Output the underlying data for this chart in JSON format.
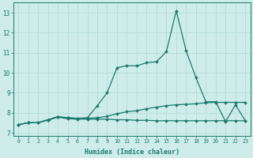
{
  "x": [
    0,
    1,
    2,
    3,
    4,
    5,
    6,
    7,
    8,
    9,
    10,
    11,
    12,
    13,
    14,
    15,
    16,
    17,
    18,
    19,
    20,
    21,
    22,
    23
  ],
  "y_peak": [
    7.4,
    7.5,
    7.5,
    7.65,
    7.8,
    7.75,
    7.72,
    7.75,
    8.35,
    9.0,
    10.25,
    10.35,
    10.35,
    10.5,
    10.55,
    11.05,
    13.1,
    11.1,
    9.75,
    8.55,
    8.55,
    7.55,
    8.4,
    7.6
  ],
  "y_mid": [
    7.4,
    7.5,
    7.5,
    7.65,
    7.8,
    7.75,
    7.72,
    7.72,
    7.75,
    7.82,
    7.95,
    8.05,
    8.1,
    8.2,
    8.28,
    8.35,
    8.4,
    8.42,
    8.45,
    8.5,
    8.52,
    8.52,
    8.52,
    8.52
  ],
  "y_flat": [
    7.4,
    7.5,
    7.5,
    7.62,
    7.78,
    7.7,
    7.68,
    7.68,
    7.68,
    7.68,
    7.65,
    7.65,
    7.62,
    7.62,
    7.6,
    7.6,
    7.6,
    7.6,
    7.6,
    7.6,
    7.6,
    7.6,
    7.6,
    7.6
  ],
  "bg_color": "#ceecea",
  "grid_color": "#b8dedd",
  "line_color": "#1a7a6e",
  "ylabel_vals": [
    7,
    8,
    9,
    10,
    11,
    12,
    13
  ],
  "ylim": [
    6.85,
    13.5
  ],
  "xlim": [
    -0.5,
    23.5
  ],
  "xlabel": "Humidex (Indice chaleur)",
  "marker": "D",
  "markersize": 2.0,
  "linewidth": 0.9
}
